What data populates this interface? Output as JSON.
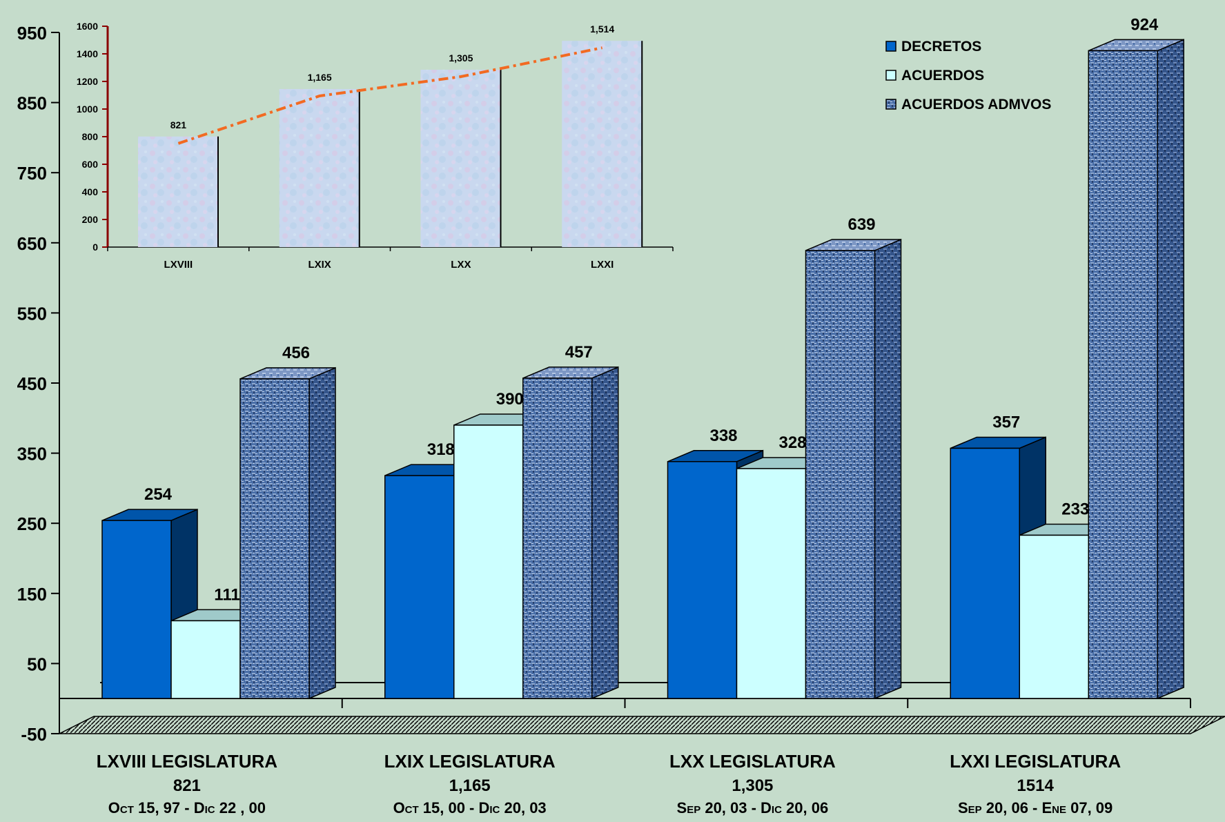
{
  "colors": {
    "background": "#c5dccb",
    "decretos": "#0066cc",
    "acuerdos": "#ccffff",
    "acuerdos_admvos": "#4a6fa8",
    "trend_line": "#f26a22",
    "inset_bar": "#c9d8ef"
  },
  "chart_data": [
    {
      "type": "bar",
      "title": "",
      "xlabel": "",
      "ylabel": "",
      "ylim": [
        -50,
        950
      ],
      "y_ticks": [
        "-50",
        "50",
        "150",
        "250",
        "350",
        "450",
        "550",
        "650",
        "750",
        "850",
        "950"
      ],
      "grid": false,
      "legend_position": "top-right",
      "categories": [
        {
          "name": "LXVIII LEGISLATURA",
          "total": "821",
          "period": "Oct 15, 97 - Dic 22 , 00"
        },
        {
          "name": "LXIX   LEGISLATURA",
          "total": "1,165",
          "period": "Oct 15, 00 - Dic 20, 03"
        },
        {
          "name": "LXX    LEGISLATURA",
          "total": "1,305",
          "period": "Sep 20, 03 - Dic 20, 06"
        },
        {
          "name": "LXXI  LEGISLATURA",
          "total": "1514",
          "period": "Sep 20, 06 - Ene 07,  09"
        }
      ],
      "series": [
        {
          "name": "DECRETOS",
          "values": [
            254,
            318,
            338,
            357
          ],
          "labels": [
            "254",
            "318",
            "338",
            "357"
          ]
        },
        {
          "name": "ACUERDOS",
          "values": [
            111,
            390,
            328,
            233
          ],
          "labels": [
            "111",
            "390",
            "328",
            "233"
          ]
        },
        {
          "name": "ACUERDOS ADMVOS",
          "values": [
            456,
            457,
            639,
            924
          ],
          "labels": [
            "456",
            "457",
            "639",
            "924"
          ]
        }
      ]
    },
    {
      "type": "bar",
      "title": "",
      "xlabel": "",
      "ylabel": "",
      "ylim": [
        0,
        1600
      ],
      "y_ticks": [
        "0",
        "200",
        "400",
        "600",
        "800",
        "1000",
        "1200",
        "1400",
        "1600"
      ],
      "grid": false,
      "categories": [
        "LXVIII",
        "LXIX",
        "LXX",
        "LXXI"
      ],
      "values": [
        821,
        1165,
        1305,
        1514
      ],
      "labels": [
        "821",
        "1,165",
        "1,305",
        "1,514"
      ],
      "trend_line": true
    }
  ]
}
